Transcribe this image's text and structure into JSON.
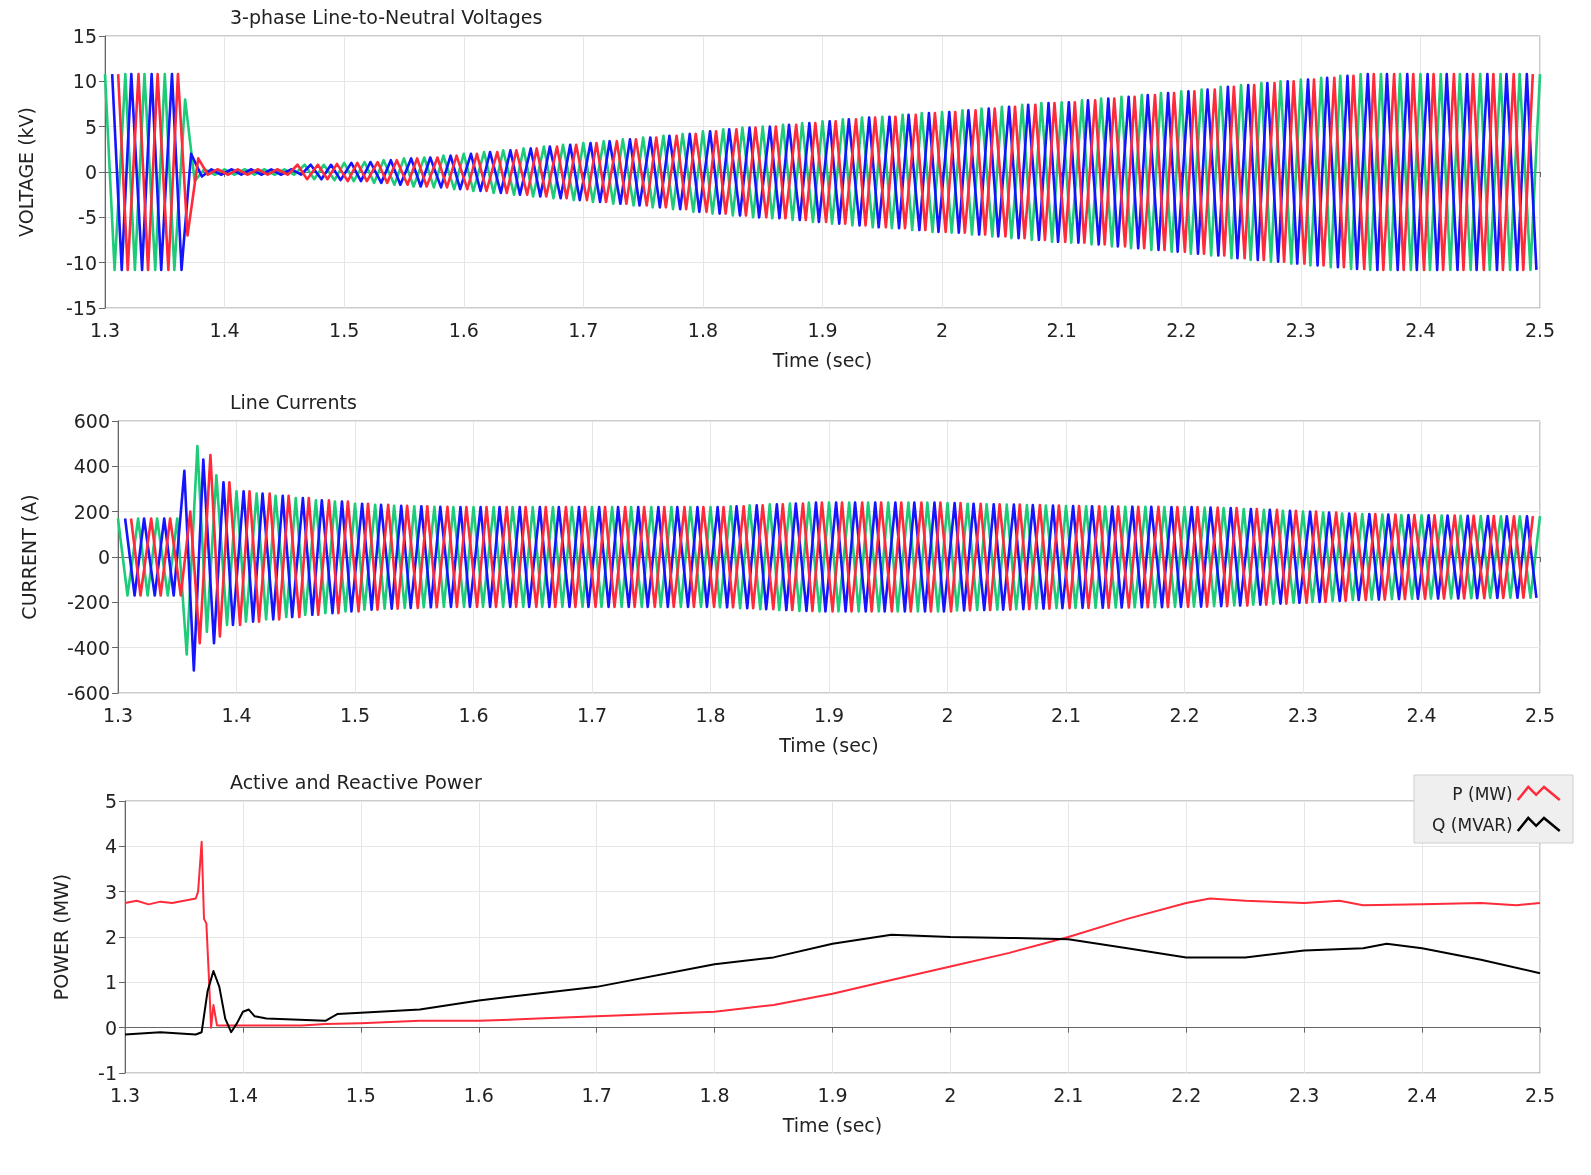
{
  "chart_data": [
    {
      "type": "line",
      "title": "3-phase Line-to-Neutral Voltages",
      "xlabel": "Time (sec)",
      "ylabel": "VOLTAGE (kV)",
      "xlim": [
        1.3,
        2.5
      ],
      "xticks": [
        1.3,
        1.4,
        1.5,
        1.6,
        1.7,
        1.8,
        1.9,
        2,
        2.1,
        2.2,
        2.3,
        2.4,
        2.5
      ],
      "ylim": [
        -15,
        15
      ],
      "yticks": [
        -15,
        -10,
        -5,
        0,
        5,
        10,
        15
      ],
      "grid": true,
      "marker": "none",
      "series": [
        {
          "color": "#1ecb78",
          "x": [
            1.3,
            1.308,
            1.317,
            1.325,
            1.333,
            1.342,
            1.35,
            1.358,
            1.367,
            1.375,
            1.383,
            1.392,
            1.4,
            1.408,
            1.417,
            1.425,
            1.433,
            1.442,
            1.45,
            1.458,
            1.467,
            1.475,
            1.483,
            1.492,
            1.5,
            1.508,
            1.517,
            1.525,
            1.533,
            1.542,
            1.55,
            1.558,
            1.567,
            1.575,
            1.583,
            1.592,
            1.6,
            1.608,
            1.617,
            1.625,
            1.633,
            1.642,
            1.65,
            1.658,
            1.667,
            1.675,
            1.683,
            1.692,
            1.7,
            1.708,
            1.717,
            1.725,
            1.733,
            1.742,
            1.75,
            1.758,
            1.767,
            1.775,
            1.783,
            1.792,
            1.8,
            1.808,
            1.817,
            1.825,
            1.833,
            1.842,
            1.85,
            1.858,
            1.867,
            1.875,
            1.883,
            1.892,
            1.9,
            1.908,
            1.917,
            1.925,
            1.933,
            1.942,
            1.95,
            1.958,
            1.967,
            1.975,
            1.983,
            1.992,
            2,
            2.008,
            2.017,
            2.025,
            2.033,
            2.042,
            2.05,
            2.058,
            2.067,
            2.075,
            2.083,
            2.092,
            2.1,
            2.108,
            2.117,
            2.125,
            2.133,
            2.142,
            2.15,
            2.158,
            2.167,
            2.175,
            2.183,
            2.192,
            2.2,
            2.208,
            2.217,
            2.225,
            2.233,
            2.242,
            2.25,
            2.258,
            2.267,
            2.275,
            2.283,
            2.292,
            2.3,
            2.308,
            2.317,
            2.325,
            2.333,
            2.342,
            2.35,
            2.358,
            2.367,
            2.375,
            2.383,
            2.392,
            2.4,
            2.408,
            2.417,
            2.425,
            2.433,
            2.442,
            2.45,
            2.458,
            2.467,
            2.475,
            2.483,
            2.492,
            2.5
          ],
          "values": [
            10.8,
            -10.8,
            10.8,
            -10.8,
            10.8,
            -10.8,
            10.8,
            -10.8,
            8,
            -1,
            0.3,
            -0.3,
            0.3,
            -0.3,
            0.3,
            -0.3,
            0.3,
            -0.3,
            0.3,
            -0.3,
            0.8,
            -0.8,
            0.8,
            -0.9,
            1,
            -1,
            1.1,
            -1.2,
            1.3,
            -1.4,
            1.5,
            -1.6,
            1.6,
            -1.7,
            1.8,
            -1.9,
            2,
            -2.1,
            2.2,
            -2.3,
            2.4,
            -2.5,
            2.6,
            -2.7,
            2.8,
            -2.9,
            3,
            -3.1,
            3.2,
            -3.3,
            3.4,
            -3.5,
            3.6,
            -3.7,
            3.8,
            -3.9,
            4,
            -4.1,
            4.2,
            -4.4,
            4.5,
            -4.6,
            4.7,
            -4.8,
            4.9,
            -5,
            5,
            -5.1,
            5.2,
            -5.3,
            5.4,
            -5.5,
            5.6,
            -5.7,
            5.8,
            -5.9,
            6,
            -6.1,
            6.1,
            -6.2,
            6.3,
            -6.4,
            6.5,
            -6.6,
            6.6,
            -6.7,
            6.8,
            -6.9,
            7,
            -7.1,
            7.2,
            -7.3,
            7.4,
            -7.5,
            7.6,
            -7.7,
            7.7,
            -7.8,
            7.9,
            -8,
            8.1,
            -8.2,
            8.3,
            -8.4,
            8.5,
            -8.6,
            8.7,
            -8.8,
            8.9,
            -9,
            9.1,
            -9.2,
            9.4,
            -9.5,
            9.6,
            -9.7,
            9.8,
            -9.9,
            10,
            -10.1,
            10.2,
            -10.3,
            10.4,
            -10.5,
            10.6,
            -10.7,
            10.8,
            -10.8,
            10.8,
            -10.8,
            10.8,
            -10.8,
            10.8,
            -10.8,
            10.8,
            -10.8,
            10.8,
            -10.8,
            10.8,
            -10.8,
            10.8,
            -10.8,
            10.8,
            -10.8,
            10.8
          ]
        },
        {
          "color": "#1414ff",
          "x": [
            1.306,
            1.314,
            1.322,
            1.331,
            1.339,
            1.347,
            1.356,
            1.364,
            1.372,
            1.381,
            1.389,
            1.397,
            1.406,
            1.414,
            1.422,
            1.431,
            1.439,
            1.447,
            1.456,
            1.464,
            1.472,
            1.481,
            1.489,
            1.497,
            1.506,
            1.514,
            1.522,
            1.531,
            1.539,
            1.547,
            1.556,
            1.564,
            1.572,
            1.581,
            1.589,
            1.597,
            1.606,
            1.614,
            1.622,
            1.631,
            1.639,
            1.647,
            1.656,
            1.664,
            1.672,
            1.681,
            1.689,
            1.697,
            1.706,
            1.714,
            1.722,
            1.731,
            1.739,
            1.747,
            1.756,
            1.764,
            1.772,
            1.781,
            1.789,
            1.797,
            1.806,
            1.814,
            1.822,
            1.831,
            1.839,
            1.847,
            1.856,
            1.864,
            1.872,
            1.881,
            1.889,
            1.897,
            1.906,
            1.914,
            1.922,
            1.931,
            1.939,
            1.947,
            1.956,
            1.964,
            1.972,
            1.981,
            1.989,
            1.997,
            2.006,
            2.014,
            2.022,
            2.031,
            2.039,
            2.047,
            2.056,
            2.064,
            2.072,
            2.081,
            2.089,
            2.097,
            2.106,
            2.114,
            2.122,
            2.131,
            2.139,
            2.147,
            2.156,
            2.164,
            2.172,
            2.181,
            2.189,
            2.197,
            2.206,
            2.214,
            2.222,
            2.231,
            2.239,
            2.247,
            2.256,
            2.264,
            2.272,
            2.281,
            2.289,
            2.297,
            2.306,
            2.314,
            2.322,
            2.331,
            2.339,
            2.347,
            2.356,
            2.364,
            2.372,
            2.381,
            2.389,
            2.397,
            2.406,
            2.414,
            2.422,
            2.431,
            2.439,
            2.447,
            2.456,
            2.464,
            2.472,
            2.481,
            2.489,
            2.497
          ],
          "values": [
            10.8,
            -10.8,
            10.8,
            -10.8,
            10.8,
            -10.8,
            10.8,
            -10.8,
            2,
            -0.5,
            0.3,
            -0.3,
            0.3,
            -0.3,
            0.3,
            -0.3,
            0.3,
            -0.3,
            0.3,
            -0.3,
            0.8,
            -0.8,
            0.8,
            -0.9,
            1,
            -1,
            1.1,
            -1.2,
            1.3,
            -1.4,
            1.5,
            -1.6,
            1.6,
            -1.7,
            1.8,
            -1.9,
            2,
            -2.1,
            2.2,
            -2.3,
            2.4,
            -2.5,
            2.6,
            -2.7,
            2.8,
            -2.9,
            3,
            -3.1,
            3.2,
            -3.3,
            3.4,
            -3.5,
            3.6,
            -3.7,
            3.8,
            -3.9,
            4,
            -4.1,
            4.2,
            -4.4,
            4.5,
            -4.6,
            4.7,
            -4.8,
            4.9,
            -5,
            5,
            -5.1,
            5.2,
            -5.3,
            5.4,
            -5.5,
            5.6,
            -5.7,
            5.8,
            -5.9,
            6,
            -6.1,
            6.1,
            -6.2,
            6.3,
            -6.4,
            6.5,
            -6.6,
            6.6,
            -6.7,
            6.8,
            -6.9,
            7,
            -7.1,
            7.2,
            -7.3,
            7.4,
            -7.5,
            7.6,
            -7.7,
            7.7,
            -7.8,
            7.9,
            -8,
            8.1,
            -8.2,
            8.3,
            -8.4,
            8.5,
            -8.6,
            8.7,
            -8.8,
            8.9,
            -9,
            9.1,
            -9.2,
            9.4,
            -9.5,
            9.6,
            -9.7,
            9.8,
            -9.9,
            10,
            -10.1,
            10.2,
            -10.3,
            10.4,
            -10.5,
            10.6,
            -10.7,
            10.8,
            -10.8,
            10.8,
            -10.8,
            10.8,
            -10.8,
            10.8,
            -10.8,
            10.8,
            -10.8,
            10.8,
            -10.8,
            10.8,
            -10.8,
            10.8,
            -10.8,
            10.8,
            -10.8
          ]
        },
        {
          "color": "#ff2a3a",
          "x": [
            1.311,
            1.319,
            1.328,
            1.336,
            1.344,
            1.353,
            1.361,
            1.369,
            1.378,
            1.386,
            1.394,
            1.403,
            1.411,
            1.419,
            1.428,
            1.436,
            1.444,
            1.453,
            1.461,
            1.469,
            1.478,
            1.486,
            1.494,
            1.503,
            1.511,
            1.519,
            1.528,
            1.536,
            1.544,
            1.553,
            1.561,
            1.569,
            1.578,
            1.586,
            1.594,
            1.603,
            1.611,
            1.619,
            1.628,
            1.636,
            1.644,
            1.653,
            1.661,
            1.669,
            1.678,
            1.686,
            1.694,
            1.703,
            1.711,
            1.719,
            1.728,
            1.736,
            1.744,
            1.753,
            1.761,
            1.769,
            1.778,
            1.786,
            1.794,
            1.803,
            1.811,
            1.819,
            1.828,
            1.836,
            1.844,
            1.853,
            1.861,
            1.869,
            1.878,
            1.886,
            1.894,
            1.903,
            1.911,
            1.919,
            1.928,
            1.936,
            1.944,
            1.953,
            1.961,
            1.969,
            1.978,
            1.986,
            1.994,
            2.003,
            2.011,
            2.019,
            2.028,
            2.036,
            2.044,
            2.053,
            2.061,
            2.069,
            2.078,
            2.086,
            2.094,
            2.103,
            2.111,
            2.119,
            2.128,
            2.136,
            2.144,
            2.153,
            2.161,
            2.169,
            2.178,
            2.186,
            2.194,
            2.203,
            2.211,
            2.219,
            2.228,
            2.236,
            2.244,
            2.253,
            2.261,
            2.269,
            2.278,
            2.286,
            2.294,
            2.303,
            2.311,
            2.319,
            2.328,
            2.336,
            2.344,
            2.353,
            2.361,
            2.369,
            2.378,
            2.386,
            2.394,
            2.403,
            2.411,
            2.419,
            2.428,
            2.436,
            2.444,
            2.453,
            2.461,
            2.469,
            2.478,
            2.486,
            2.494
          ],
          "values": [
            10.8,
            -10.8,
            10.8,
            -10.8,
            10.8,
            -10.8,
            10.8,
            -7,
            1.5,
            -0.3,
            0.3,
            -0.3,
            0.3,
            -0.3,
            0.3,
            -0.3,
            0.3,
            -0.3,
            0.8,
            -0.8,
            0.8,
            -0.8,
            0.9,
            -1,
            1,
            -1,
            1.1,
            -1.2,
            1.3,
            -1.4,
            1.5,
            -1.6,
            1.6,
            -1.7,
            1.8,
            -1.9,
            2,
            -2.1,
            2.2,
            -2.3,
            2.4,
            -2.5,
            2.6,
            -2.7,
            2.8,
            -2.9,
            3,
            -3.1,
            3.2,
            -3.3,
            3.4,
            -3.5,
            3.6,
            -3.7,
            3.8,
            -3.9,
            4,
            -4.1,
            4.2,
            -4.4,
            4.5,
            -4.6,
            4.7,
            -4.8,
            4.9,
            -5,
            5,
            -5.1,
            5.2,
            -5.3,
            5.4,
            -5.5,
            5.6,
            -5.7,
            5.8,
            -5.9,
            6,
            -6.1,
            6.1,
            -6.2,
            6.3,
            -6.4,
            6.5,
            -6.6,
            6.6,
            -6.7,
            6.8,
            -6.9,
            7,
            -7.1,
            7.2,
            -7.3,
            7.4,
            -7.5,
            7.6,
            -7.7,
            7.7,
            -7.8,
            7.9,
            -8,
            8.1,
            -8.2,
            8.3,
            -8.4,
            8.5,
            -8.6,
            8.7,
            -8.8,
            8.9,
            -9,
            9.1,
            -9.2,
            9.4,
            -9.5,
            9.6,
            -9.7,
            9.8,
            -9.9,
            10,
            -10.1,
            10.2,
            -10.3,
            10.4,
            -10.5,
            10.6,
            -10.7,
            10.8,
            -10.8,
            10.8,
            -10.8,
            10.8,
            -10.8,
            10.8,
            -10.8,
            10.8,
            -10.8,
            10.8,
            -10.8,
            10.8,
            -10.8,
            10.8,
            -10.8,
            10.8
          ]
        }
      ]
    },
    {
      "type": "line",
      "title": "Line Currents",
      "xlabel": "Time (sec)",
      "ylabel": "CURRENT (A)",
      "xlim": [
        1.3,
        2.5
      ],
      "xticks": [
        1.3,
        1.4,
        1.5,
        1.6,
        1.7,
        1.8,
        1.9,
        2,
        2.1,
        2.2,
        2.3,
        2.4,
        2.5
      ],
      "ylim": [
        -600,
        600
      ],
      "yticks": [
        -600,
        -400,
        -200,
        0,
        200,
        400,
        600
      ],
      "grid": true,
      "marker": "none",
      "series": [
        {
          "color": "#1ecb78",
          "x": [
            1.3,
            1.308,
            1.317,
            1.325,
            1.333,
            1.342,
            1.35,
            1.358,
            1.367,
            1.375,
            1.383,
            1.392,
            1.4,
            1.408,
            1.417,
            1.425,
            1.433,
            1.442,
            1.45,
            1.458,
            1.467,
            1.475,
            1.483,
            1.492,
            1.5,
            1.508,
            1.517,
            1.525,
            1.533,
            1.542,
            1.55,
            1.558,
            1.567,
            1.575,
            1.583,
            1.592,
            1.6,
            1.608,
            1.617,
            1.625,
            1.633,
            1.642,
            1.65,
            1.658,
            1.667,
            1.675,
            1.683,
            1.692,
            1.7,
            1.708,
            1.717,
            1.725,
            1.733,
            1.742,
            1.75,
            1.758,
            1.767,
            1.775,
            1.783,
            1.792,
            1.8,
            1.808,
            1.817,
            1.825,
            1.833,
            1.842,
            1.85,
            1.858,
            1.867,
            1.875,
            1.883,
            1.892,
            1.9,
            1.908,
            1.917,
            1.925,
            1.933,
            1.942,
            1.95,
            1.958,
            1.967,
            1.975,
            1.983,
            1.992,
            2,
            2.008,
            2.017,
            2.025,
            2.033,
            2.042,
            2.05,
            2.058,
            2.067,
            2.075,
            2.083,
            2.092,
            2.1,
            2.108,
            2.117,
            2.125,
            2.133,
            2.142,
            2.15,
            2.158,
            2.167,
            2.175,
            2.183,
            2.192,
            2.2,
            2.208,
            2.217,
            2.225,
            2.233,
            2.242,
            2.25,
            2.258,
            2.267,
            2.275,
            2.283,
            2.292,
            2.3,
            2.308,
            2.317,
            2.325,
            2.333,
            2.342,
            2.35,
            2.358,
            2.367,
            2.375,
            2.383,
            2.392,
            2.4,
            2.408,
            2.417,
            2.425,
            2.433,
            2.442,
            2.45,
            2.458,
            2.467,
            2.475,
            2.483,
            2.492,
            2.5
          ],
          "values": [
            170,
            -170,
            170,
            -170,
            170,
            -170,
            170,
            -430,
            490,
            -330,
            360,
            -300,
            290,
            -285,
            280,
            -275,
            270,
            -265,
            260,
            -255,
            250,
            -248,
            245,
            -240,
            235,
            -232,
            230,
            -228,
            226,
            -225,
            224,
            -222,
            221,
            -220,
            220,
            -220,
            220,
            -220,
            220,
            -220,
            220,
            -220,
            220,
            -220,
            220,
            -220,
            220,
            -220,
            220,
            -220,
            220,
            -220,
            220,
            -220,
            220,
            -220,
            220,
            -220,
            220,
            -220,
            220,
            -222,
            224,
            -226,
            228,
            -230,
            232,
            -234,
            236,
            -238,
            240,
            -240,
            240,
            -240,
            240,
            -240,
            240,
            -240,
            240,
            -240,
            240,
            -240,
            240,
            -240,
            238,
            -236,
            235,
            -234,
            233,
            -232,
            231,
            -230,
            229,
            -228,
            227,
            -226,
            225,
            -225,
            224,
            -224,
            223,
            -223,
            222,
            -222,
            221,
            -221,
            220,
            -220,
            220,
            -219,
            218,
            -217,
            216,
            -214,
            212,
            -210,
            208,
            -206,
            204,
            -202,
            200,
            -198,
            196,
            -194,
            192,
            -190,
            189,
            -188,
            187,
            -186,
            185,
            -185,
            184,
            -184,
            183,
            -183,
            182,
            -182,
            181,
            -181,
            180,
            -180,
            180,
            -180,
            180
          ]
        },
        {
          "color": "#1414ff",
          "x": [
            1.306,
            1.314,
            1.322,
            1.331,
            1.339,
            1.347,
            1.356,
            1.364,
            1.372,
            1.381,
            1.389,
            1.397,
            1.406,
            1.414,
            1.422,
            1.431,
            1.439,
            1.447,
            1.456,
            1.464,
            1.472,
            1.481,
            1.489,
            1.497,
            1.506,
            1.514,
            1.522,
            1.531,
            1.539,
            1.547,
            1.556,
            1.564,
            1.572,
            1.581,
            1.589,
            1.597,
            1.606,
            1.614,
            1.622,
            1.631,
            1.639,
            1.647,
            1.656,
            1.664,
            1.672,
            1.681,
            1.689,
            1.697,
            1.706,
            1.714,
            1.722,
            1.731,
            1.739,
            1.747,
            1.756,
            1.764,
            1.772,
            1.781,
            1.789,
            1.797,
            1.806,
            1.814,
            1.822,
            1.831,
            1.839,
            1.847,
            1.856,
            1.864,
            1.872,
            1.881,
            1.889,
            1.897,
            1.906,
            1.914,
            1.922,
            1.931,
            1.939,
            1.947,
            1.956,
            1.964,
            1.972,
            1.981,
            1.989,
            1.997,
            2.006,
            2.014,
            2.022,
            2.031,
            2.039,
            2.047,
            2.056,
            2.064,
            2.072,
            2.081,
            2.089,
            2.097,
            2.106,
            2.114,
            2.122,
            2.131,
            2.139,
            2.147,
            2.156,
            2.164,
            2.172,
            2.181,
            2.189,
            2.197,
            2.206,
            2.214,
            2.222,
            2.231,
            2.239,
            2.247,
            2.256,
            2.264,
            2.272,
            2.281,
            2.289,
            2.297,
            2.306,
            2.314,
            2.322,
            2.331,
            2.339,
            2.347,
            2.356,
            2.364,
            2.372,
            2.381,
            2.389,
            2.397,
            2.406,
            2.414,
            2.422,
            2.431,
            2.439,
            2.447,
            2.456,
            2.464,
            2.472,
            2.481,
            2.489,
            2.497
          ],
          "values": [
            170,
            -170,
            170,
            -170,
            170,
            -170,
            380,
            -500,
            430,
            -380,
            330,
            -300,
            290,
            -285,
            280,
            -275,
            270,
            -265,
            260,
            -255,
            250,
            -248,
            245,
            -240,
            235,
            -232,
            230,
            -228,
            226,
            -225,
            224,
            -222,
            221,
            -220,
            220,
            -220,
            220,
            -220,
            220,
            -220,
            220,
            -220,
            220,
            -220,
            220,
            -220,
            220,
            -220,
            220,
            -220,
            220,
            -220,
            220,
            -220,
            220,
            -220,
            220,
            -220,
            220,
            -220,
            220,
            -222,
            224,
            -226,
            228,
            -230,
            232,
            -234,
            236,
            -238,
            240,
            -240,
            240,
            -240,
            240,
            -240,
            240,
            -240,
            240,
            -240,
            240,
            -240,
            240,
            -240,
            238,
            -236,
            235,
            -234,
            233,
            -232,
            231,
            -230,
            229,
            -228,
            227,
            -226,
            225,
            -225,
            224,
            -224,
            223,
            -223,
            222,
            -222,
            221,
            -221,
            220,
            -220,
            220,
            -219,
            218,
            -217,
            216,
            -214,
            212,
            -210,
            208,
            -206,
            204,
            -202,
            200,
            -198,
            196,
            -194,
            192,
            -190,
            189,
            -188,
            187,
            -186,
            185,
            -185,
            184,
            -184,
            183,
            -183,
            182,
            -182,
            181,
            -181,
            180,
            -180,
            180,
            -180
          ]
        },
        {
          "color": "#ff2a3a",
          "x": [
            1.311,
            1.319,
            1.328,
            1.336,
            1.344,
            1.353,
            1.361,
            1.369,
            1.378,
            1.386,
            1.394,
            1.403,
            1.411,
            1.419,
            1.428,
            1.436,
            1.444,
            1.453,
            1.461,
            1.469,
            1.478,
            1.486,
            1.494,
            1.503,
            1.511,
            1.519,
            1.528,
            1.536,
            1.544,
            1.553,
            1.561,
            1.569,
            1.578,
            1.586,
            1.594,
            1.603,
            1.611,
            1.619,
            1.628,
            1.636,
            1.644,
            1.653,
            1.661,
            1.669,
            1.678,
            1.686,
            1.694,
            1.703,
            1.711,
            1.719,
            1.728,
            1.736,
            1.744,
            1.753,
            1.761,
            1.769,
            1.778,
            1.786,
            1.794,
            1.803,
            1.811,
            1.819,
            1.828,
            1.836,
            1.844,
            1.853,
            1.861,
            1.869,
            1.878,
            1.886,
            1.894,
            1.903,
            1.911,
            1.919,
            1.928,
            1.936,
            1.944,
            1.953,
            1.961,
            1.969,
            1.978,
            1.986,
            1.994,
            2.003,
            2.011,
            2.019,
            2.028,
            2.036,
            2.044,
            2.053,
            2.061,
            2.069,
            2.078,
            2.086,
            2.094,
            2.103,
            2.111,
            2.119,
            2.128,
            2.136,
            2.144,
            2.153,
            2.161,
            2.169,
            2.178,
            2.186,
            2.194,
            2.203,
            2.211,
            2.219,
            2.228,
            2.236,
            2.244,
            2.253,
            2.261,
            2.269,
            2.278,
            2.286,
            2.294,
            2.303,
            2.311,
            2.319,
            2.328,
            2.336,
            2.344,
            2.353,
            2.361,
            2.369,
            2.378,
            2.386,
            2.394,
            2.403,
            2.411,
            2.419,
            2.428,
            2.436,
            2.444,
            2.453,
            2.461,
            2.469,
            2.478,
            2.486,
            2.494
          ],
          "values": [
            170,
            -170,
            170,
            -170,
            170,
            -170,
            200,
            -380,
            450,
            -350,
            330,
            -300,
            290,
            -285,
            280,
            -275,
            270,
            -265,
            260,
            -255,
            250,
            -248,
            245,
            -240,
            235,
            -232,
            230,
            -228,
            226,
            -225,
            224,
            -222,
            221,
            -220,
            220,
            -220,
            220,
            -220,
            220,
            -220,
            220,
            -220,
            220,
            -220,
            220,
            -220,
            220,
            -220,
            220,
            -220,
            220,
            -220,
            220,
            -220,
            220,
            -220,
            220,
            -220,
            220,
            -220,
            220,
            -222,
            224,
            -226,
            228,
            -230,
            232,
            -234,
            236,
            -238,
            240,
            -240,
            240,
            -240,
            240,
            -240,
            240,
            -240,
            240,
            -240,
            240,
            -240,
            240,
            -240,
            238,
            -236,
            235,
            -234,
            233,
            -232,
            231,
            -230,
            229,
            -228,
            227,
            -226,
            225,
            -225,
            224,
            -224,
            223,
            -223,
            222,
            -222,
            221,
            -221,
            220,
            -220,
            220,
            -219,
            218,
            -217,
            216,
            -214,
            212,
            -210,
            208,
            -206,
            204,
            -202,
            200,
            -198,
            196,
            -194,
            192,
            -190,
            189,
            -188,
            187,
            -186,
            185,
            -185,
            184,
            -184,
            183,
            -183,
            182,
            -182,
            181,
            -181,
            180,
            -180,
            180
          ]
        }
      ]
    },
    {
      "type": "line",
      "title": "Active and Reactive Power",
      "xlabel": "Time (sec)",
      "ylabel": "POWER (MW)",
      "xlim": [
        1.3,
        2.5
      ],
      "xticks": [
        1.3,
        1.4,
        1.5,
        1.6,
        1.7,
        1.8,
        1.9,
        2,
        2.1,
        2.2,
        2.3,
        2.4,
        2.5
      ],
      "ylim": [
        -1,
        5
      ],
      "yticks": [
        -1,
        0,
        1,
        2,
        3,
        4,
        5
      ],
      "grid": true,
      "marker": "none",
      "legend": "top right",
      "series": [
        {
          "name": "P (MW)",
          "color": "#ff2a3a",
          "x": [
            1.3,
            1.31,
            1.32,
            1.33,
            1.34,
            1.35,
            1.36,
            1.362,
            1.365,
            1.367,
            1.369,
            1.371,
            1.373,
            1.375,
            1.378,
            1.38,
            1.39,
            1.4,
            1.42,
            1.45,
            1.47,
            1.5,
            1.55,
            1.6,
            1.65,
            1.7,
            1.75,
            1.8,
            1.85,
            1.9,
            1.95,
            2,
            2.05,
            2.1,
            2.15,
            2.2,
            2.22,
            2.25,
            2.3,
            2.33,
            2.35,
            2.4,
            2.45,
            2.48,
            2.5
          ],
          "values": [
            2.75,
            2.8,
            2.72,
            2.78,
            2.75,
            2.8,
            2.85,
            3.0,
            4.1,
            2.4,
            2.3,
            1.2,
            0.0,
            0.5,
            0.05,
            0.05,
            0.05,
            0.05,
            0.05,
            0.05,
            0.08,
            0.1,
            0.15,
            0.15,
            0.2,
            0.25,
            0.3,
            0.35,
            0.5,
            0.75,
            1.05,
            1.35,
            1.65,
            2.0,
            2.4,
            2.75,
            2.85,
            2.8,
            2.75,
            2.8,
            2.7,
            2.72,
            2.75,
            2.7,
            2.75
          ]
        },
        {
          "name": "Q (MVAR)",
          "color": "#000000",
          "x": [
            1.3,
            1.33,
            1.36,
            1.365,
            1.37,
            1.375,
            1.38,
            1.385,
            1.39,
            1.395,
            1.4,
            1.405,
            1.41,
            1.42,
            1.47,
            1.48,
            1.5,
            1.55,
            1.6,
            1.7,
            1.8,
            1.85,
            1.9,
            1.95,
            2,
            2.05,
            2.1,
            2.15,
            2.2,
            2.25,
            2.3,
            2.35,
            2.37,
            2.4,
            2.45,
            2.5
          ],
          "values": [
            -0.15,
            -0.1,
            -0.15,
            -0.1,
            0.8,
            1.25,
            0.9,
            0.2,
            -0.1,
            0.1,
            0.35,
            0.4,
            0.25,
            0.2,
            0.15,
            0.3,
            0.33,
            0.4,
            0.6,
            0.9,
            1.4,
            1.55,
            1.85,
            2.05,
            2.0,
            1.98,
            1.95,
            1.75,
            1.55,
            1.55,
            1.7,
            1.75,
            1.85,
            1.75,
            1.5,
            1.2
          ]
        }
      ]
    }
  ]
}
